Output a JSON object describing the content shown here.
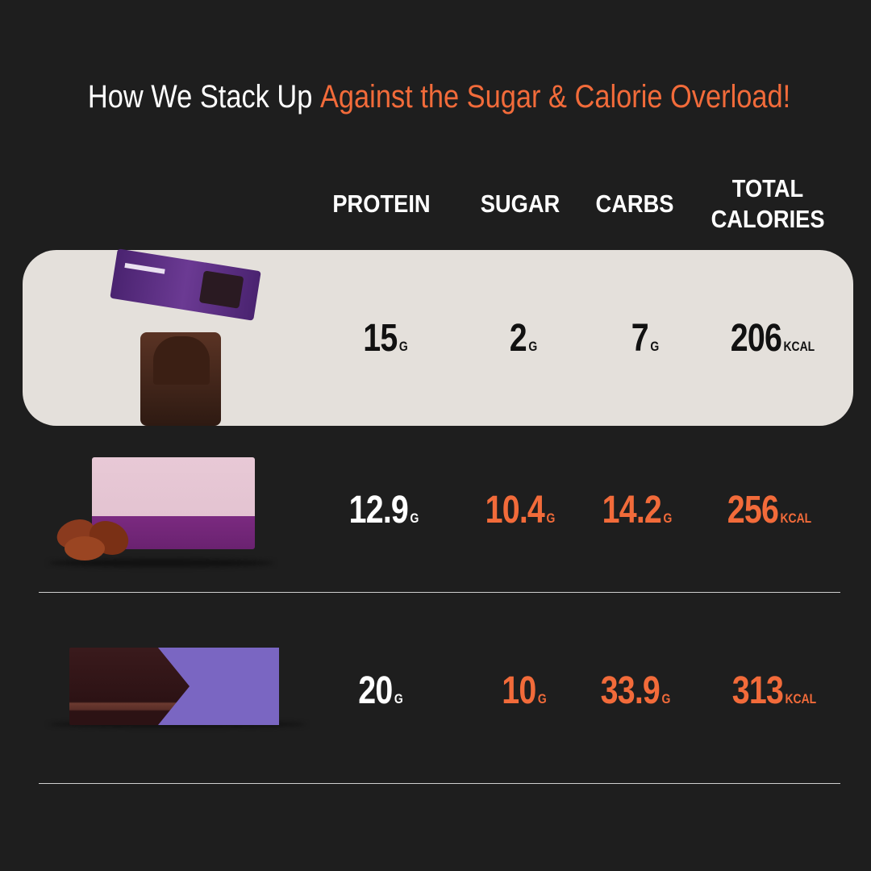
{
  "title": {
    "part1": "How We Stack Up ",
    "part2": "Against the Sugar & Calorie Overload!"
  },
  "columns": [
    "PROTEIN",
    "SUGAR",
    "CARBS",
    "TOTAL CALORIES"
  ],
  "colors": {
    "background": "#1e1e1e",
    "accent": "#f26b3a",
    "highlight": "#e4e0db"
  },
  "rows": [
    {
      "product": "protein-bar-brownie",
      "highlighted": true,
      "protein": {
        "value": "15",
        "unit": "G"
      },
      "sugar": {
        "value": "2",
        "unit": "G"
      },
      "carbs": {
        "value": "7",
        "unit": "G"
      },
      "calories": {
        "value": "206",
        "unit": "KCAL"
      }
    },
    {
      "product": "date-bar",
      "highlighted": false,
      "protein": {
        "value": "12.9",
        "unit": "G"
      },
      "sugar": {
        "value": "10.4",
        "unit": "G"
      },
      "carbs": {
        "value": "14.2",
        "unit": "G"
      },
      "calories": {
        "value": "256",
        "unit": "KCAL"
      }
    },
    {
      "product": "chocolate-bar",
      "highlighted": false,
      "protein": {
        "value": "20",
        "unit": "G"
      },
      "sugar": {
        "value": "10",
        "unit": "G"
      },
      "carbs": {
        "value": "33.9",
        "unit": "G"
      },
      "calories": {
        "value": "313",
        "unit": "KCAL"
      }
    }
  ]
}
